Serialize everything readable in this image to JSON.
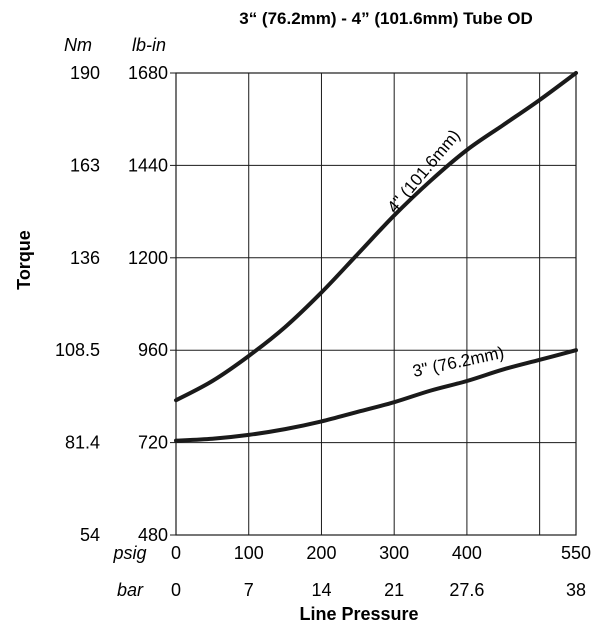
{
  "chart_data": {
    "type": "line",
    "title": "3“ (76.2mm) - 4” (101.6mm) Tube OD",
    "ylabel": "Torque",
    "xlabel": "Line Pressure",
    "y_units": [
      "Nm",
      "lb-in"
    ],
    "x_units": [
      "psig",
      "bar"
    ],
    "ylim": [
      480,
      1680
    ],
    "xlim": [
      0,
      550
    ],
    "y_ticks_lbin": [
      "1680",
      "1440",
      "1200",
      "960",
      "720",
      "480"
    ],
    "y_ticks_nm": [
      "190",
      "163",
      "136",
      "108.5",
      "81.4",
      "54"
    ],
    "x_ticks_psig": [
      "0",
      "100",
      "200",
      "300",
      "400",
      "550"
    ],
    "x_ticks_bar": [
      "0",
      "7",
      "14",
      "21",
      "27.6",
      "38"
    ],
    "grid": true,
    "series": [
      {
        "name": "4\" (101.6mm)",
        "x": [
          0,
          50,
          100,
          150,
          200,
          250,
          300,
          350,
          400,
          450,
          500,
          550
        ],
        "y": [
          830,
          880,
          945,
          1020,
          1110,
          1210,
          1310,
          1400,
          1480,
          1545,
          1610,
          1680
        ]
      },
      {
        "name": "3\" (76.2mm)",
        "x": [
          0,
          50,
          100,
          150,
          200,
          250,
          300,
          350,
          400,
          450,
          500,
          550
        ],
        "y": [
          725,
          730,
          740,
          755,
          775,
          800,
          825,
          855,
          880,
          910,
          935,
          960
        ]
      }
    ]
  }
}
